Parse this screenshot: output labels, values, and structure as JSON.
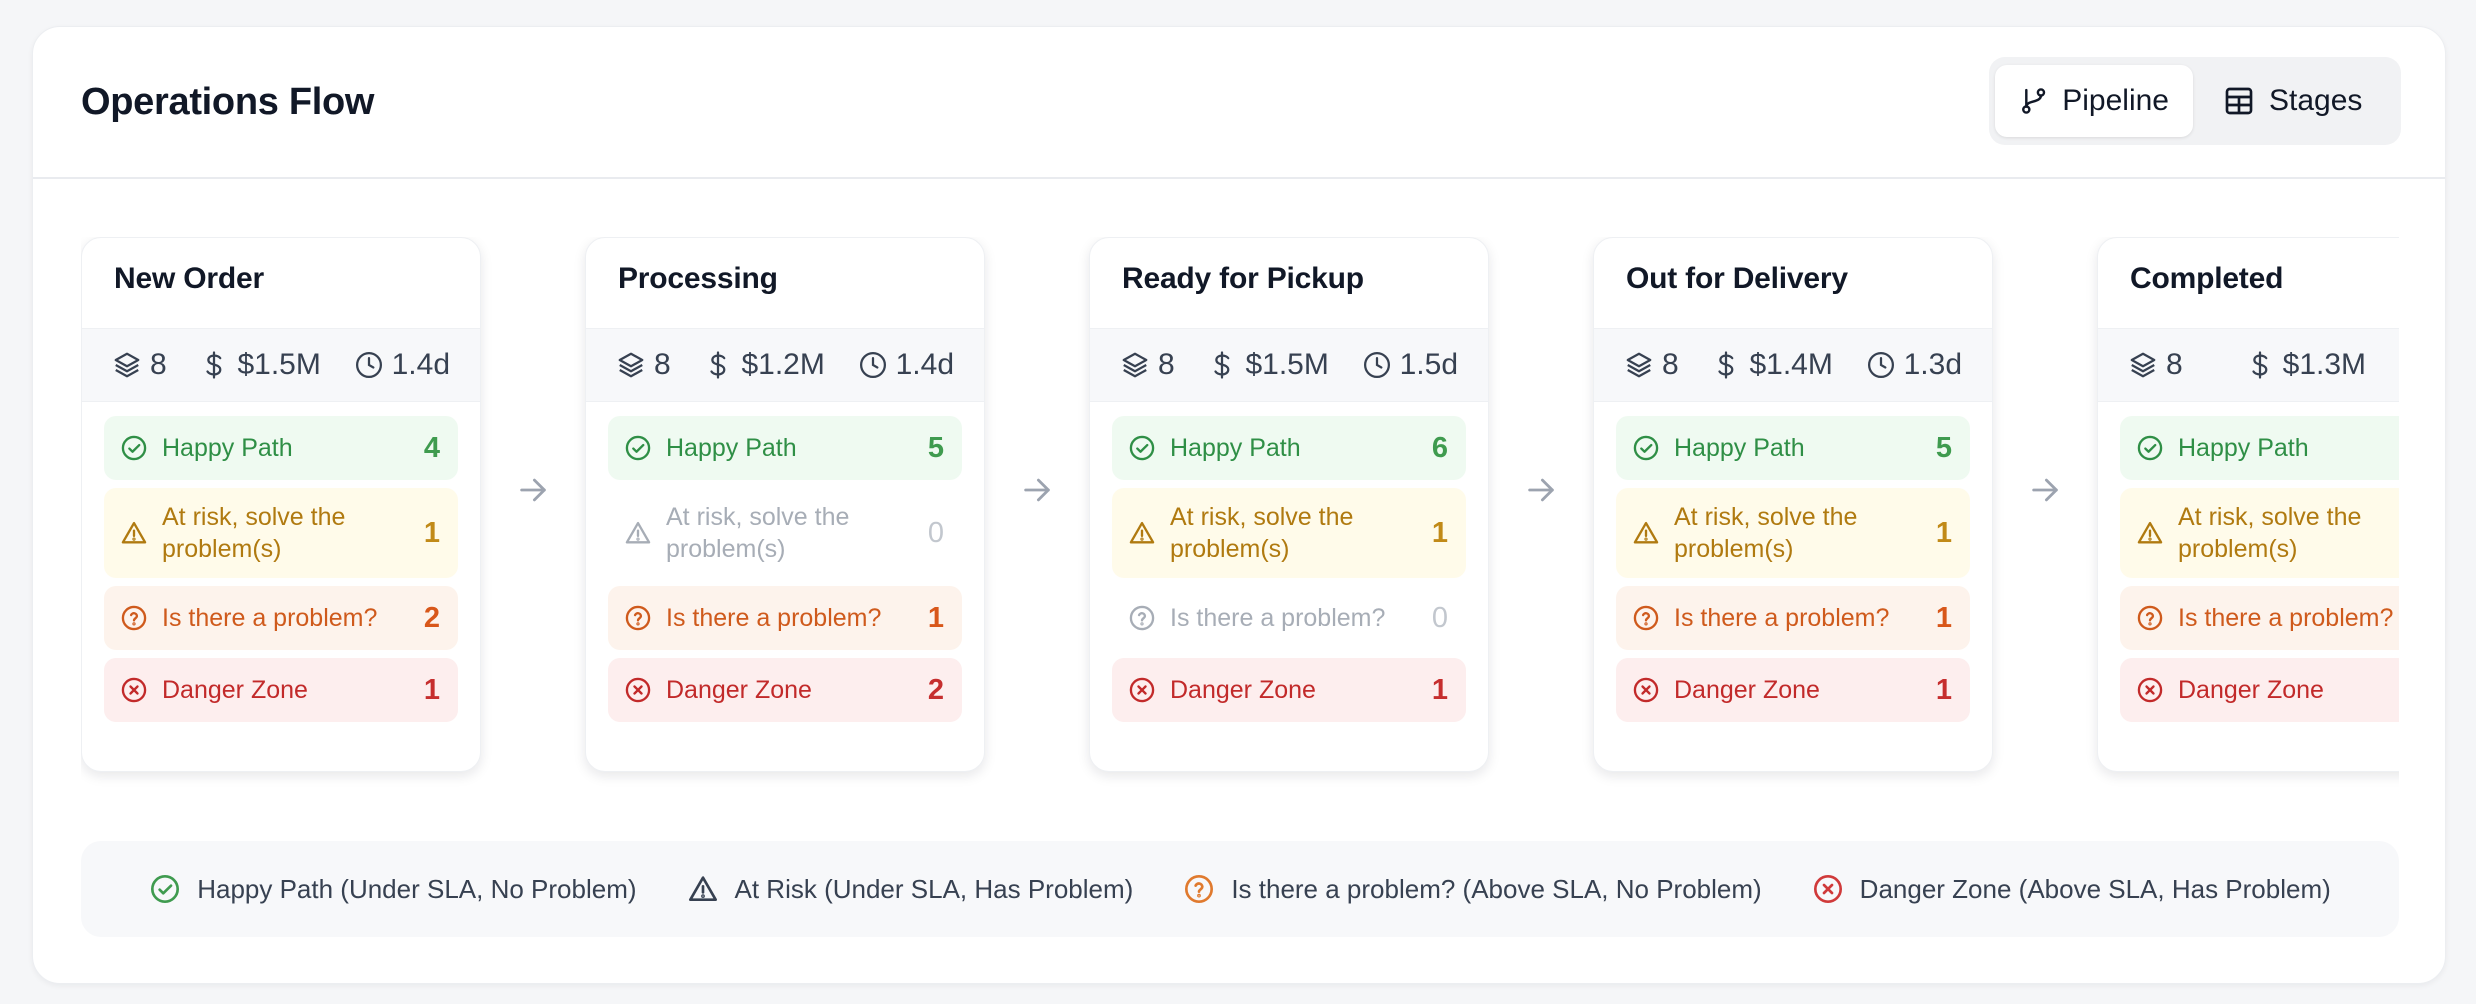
{
  "header": {
    "title": "Operations Flow",
    "view_toggle": [
      {
        "label": "Pipeline",
        "icon": "git-branch-icon",
        "active": true
      },
      {
        "label": "Stages",
        "icon": "table-icon",
        "active": false
      }
    ]
  },
  "status_labels": {
    "happy": "Happy Path",
    "risk": "At risk, solve the problem(s)",
    "question": "Is there a problem?",
    "danger": "Danger Zone"
  },
  "colors": {
    "happy": "#2f8f46",
    "risk": "#b07a10",
    "question": "#cf5a1c",
    "danger": "#c22a2a",
    "muted": "#a7adb6"
  },
  "stages": [
    {
      "name": "New Order",
      "count": "8",
      "value": "$1.5M",
      "time": "1.4d",
      "happy": "4",
      "risk": "1",
      "question": "2",
      "danger": "1"
    },
    {
      "name": "Processing",
      "count": "8",
      "value": "$1.2M",
      "time": "1.4d",
      "happy": "5",
      "risk": "0",
      "question": "1",
      "danger": "2"
    },
    {
      "name": "Ready for Pickup",
      "count": "8",
      "value": "$1.5M",
      "time": "1.5d",
      "happy": "6",
      "risk": "1",
      "question": "0",
      "danger": "1"
    },
    {
      "name": "Out for Delivery",
      "count": "8",
      "value": "$1.4M",
      "time": "1.3d",
      "happy": "5",
      "risk": "1",
      "question": "1",
      "danger": "1"
    },
    {
      "name": "Completed",
      "count": "8",
      "value": "$1.3M",
      "time": "",
      "happy": "",
      "risk": "",
      "question": "",
      "danger": ""
    }
  ],
  "legend": [
    {
      "key": "happy",
      "icon": "check-circle-icon",
      "label": "Happy Path (Under SLA, No Problem)"
    },
    {
      "key": "risk",
      "icon": "warning-triangle-icon",
      "label": "At Risk (Under SLA, Has Problem)"
    },
    {
      "key": "question",
      "icon": "question-circle-icon",
      "label": "Is there a problem? (Above SLA, No Problem)"
    },
    {
      "key": "danger",
      "icon": "x-circle-icon",
      "label": "Danger Zone (Above SLA, Has Problem)"
    }
  ]
}
